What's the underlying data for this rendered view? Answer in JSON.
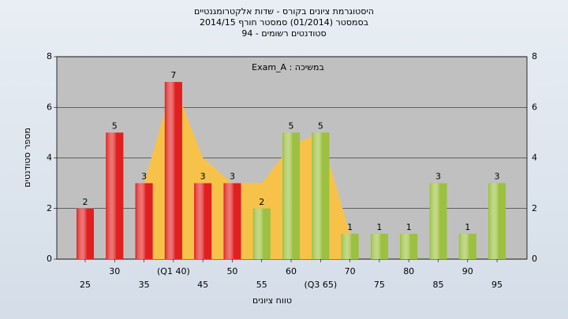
{
  "chart_data": {
    "type": "bar",
    "title": "היסטוגרמת ציונים בקורס - שדות אלקטרומגנטיים",
    "subtitle": "בסמסטר  (01/2014)  סמסטר חורף 2014/15",
    "subtitle2": "סטודנטים רשומים - 94",
    "annotation": "Exam_A : במשיכה",
    "y_label": "מספר סטודנטים",
    "x_label": "טווח ציונים",
    "categories": [
      "25",
      "30",
      "35",
      "(Q1 40)",
      "45",
      "50",
      "55",
      "60",
      "(Q3 65)",
      "70",
      "75",
      "80",
      "85",
      "90",
      "95"
    ],
    "values": [
      2,
      5,
      3,
      7,
      3,
      3,
      2,
      5,
      5,
      1,
      1,
      1,
      3,
      1,
      3
    ],
    "colors": [
      "#e02020",
      "#e02020",
      "#e02020",
      "#e02020",
      "#e02020",
      "#e02020",
      "#9cc040",
      "#9cc040",
      "#9cc040",
      "#9cc040",
      "#9cc040",
      "#9cc040",
      "#9cc040",
      "#9cc040",
      "#9cc040"
    ],
    "area": {
      "values": [
        null,
        null,
        3,
        7,
        4,
        3,
        3,
        4.5,
        5,
        1,
        null,
        null,
        null,
        null,
        null
      ],
      "color": "#f7c24a"
    },
    "ylim": [
      0,
      8
    ],
    "yticks": [
      0,
      2,
      4,
      6,
      8
    ],
    "grid": true
  }
}
